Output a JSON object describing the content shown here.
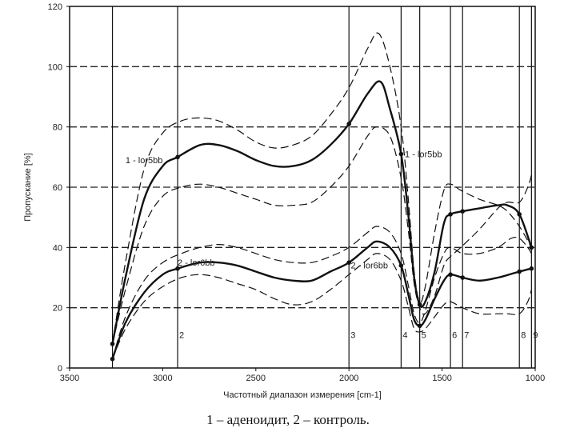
{
  "caption": "1 – аденоидит,    2 – контроль.",
  "chart_data": {
    "type": "line",
    "title": "",
    "xlabel": "Частотный диапазон измерения [cm-1]",
    "ylabel": "Пропускание [%]",
    "xlim": [
      3500,
      1000
    ],
    "ylim": [
      0,
      120
    ],
    "x_ticks": [
      3500,
      3000,
      2500,
      2000,
      1500,
      1000
    ],
    "y_ticks": [
      0,
      20,
      40,
      60,
      80,
      100,
      120
    ],
    "y_tick_labels": [
      "0",
      "20",
      "40",
      "60",
      "80",
      "100",
      "120"
    ],
    "grid": {
      "horizontal_dashed": [
        20,
        40,
        60,
        80,
        100
      ]
    },
    "vertical_markers": [
      {
        "x": 3270,
        "label": ""
      },
      {
        "x": 2920,
        "label": "2"
      },
      {
        "x": 2000,
        "label": "3"
      },
      {
        "x": 1720,
        "label": "4"
      },
      {
        "x": 1620,
        "label": "5"
      },
      {
        "x": 1455,
        "label": "6"
      },
      {
        "x": 1390,
        "label": "7"
      },
      {
        "x": 1085,
        "label": "8"
      },
      {
        "x": 1020,
        "label": "9"
      }
    ],
    "series": [
      {
        "name": "1 - lor5bb",
        "style": "solid",
        "points": [
          [
            3270,
            8
          ],
          [
            3200,
            30
          ],
          [
            3100,
            56
          ],
          [
            3000,
            67
          ],
          [
            2920,
            70
          ],
          [
            2800,
            74
          ],
          [
            2700,
            74
          ],
          [
            2600,
            72
          ],
          [
            2500,
            69
          ],
          [
            2400,
            67
          ],
          [
            2300,
            67
          ],
          [
            2200,
            69
          ],
          [
            2100,
            74
          ],
          [
            2000,
            81
          ],
          [
            1900,
            91
          ],
          [
            1830,
            95
          ],
          [
            1780,
            86
          ],
          [
            1720,
            71
          ],
          [
            1680,
            50
          ],
          [
            1650,
            30
          ],
          [
            1620,
            21
          ],
          [
            1590,
            22
          ],
          [
            1540,
            32
          ],
          [
            1490,
            48
          ],
          [
            1455,
            51
          ],
          [
            1390,
            52
          ],
          [
            1300,
            53
          ],
          [
            1200,
            54
          ],
          [
            1150,
            54
          ],
          [
            1085,
            51
          ],
          [
            1020,
            40
          ]
        ],
        "markers": [
          [
            3270,
            8
          ],
          [
            2920,
            70
          ],
          [
            2000,
            81
          ],
          [
            1720,
            71
          ],
          [
            1620,
            21
          ],
          [
            1455,
            51
          ],
          [
            1390,
            52
          ],
          [
            1085,
            51
          ],
          [
            1020,
            40
          ]
        ]
      },
      {
        "name": "1 - lor5bb upper",
        "style": "dashed",
        "points": [
          [
            3270,
            8
          ],
          [
            3200,
            35
          ],
          [
            3100,
            66
          ],
          [
            3000,
            78
          ],
          [
            2900,
            82
          ],
          [
            2800,
            83
          ],
          [
            2700,
            82
          ],
          [
            2600,
            79
          ],
          [
            2500,
            75
          ],
          [
            2400,
            73
          ],
          [
            2300,
            74
          ],
          [
            2200,
            77
          ],
          [
            2100,
            84
          ],
          [
            2000,
            93
          ],
          [
            1900,
            106
          ],
          [
            1840,
            111
          ],
          [
            1780,
            100
          ],
          [
            1720,
            80
          ],
          [
            1680,
            55
          ],
          [
            1650,
            32
          ],
          [
            1620,
            22
          ],
          [
            1590,
            27
          ],
          [
            1540,
            45
          ],
          [
            1490,
            59
          ],
          [
            1455,
            61
          ],
          [
            1400,
            59
          ],
          [
            1300,
            56
          ],
          [
            1200,
            54
          ],
          [
            1150,
            52
          ],
          [
            1085,
            47
          ],
          [
            1020,
            40
          ]
        ]
      },
      {
        "name": "1 - lor5bb lower",
        "style": "dashed",
        "points": [
          [
            3270,
            8
          ],
          [
            3200,
            26
          ],
          [
            3100,
            47
          ],
          [
            3000,
            57
          ],
          [
            2900,
            60
          ],
          [
            2800,
            61
          ],
          [
            2700,
            60
          ],
          [
            2600,
            58
          ],
          [
            2500,
            56
          ],
          [
            2400,
            54
          ],
          [
            2300,
            54
          ],
          [
            2200,
            55
          ],
          [
            2100,
            60
          ],
          [
            2000,
            67
          ],
          [
            1900,
            77
          ],
          [
            1850,
            80
          ],
          [
            1780,
            77
          ],
          [
            1720,
            63
          ],
          [
            1680,
            45
          ],
          [
            1650,
            28
          ],
          [
            1620,
            20
          ],
          [
            1590,
            18
          ],
          [
            1540,
            24
          ],
          [
            1490,
            34
          ],
          [
            1455,
            37
          ],
          [
            1400,
            40
          ],
          [
            1300,
            46
          ],
          [
            1200,
            53
          ],
          [
            1150,
            55
          ],
          [
            1085,
            55
          ],
          [
            1040,
            60
          ],
          [
            1020,
            64
          ]
        ]
      },
      {
        "name": "2 - lor6bb",
        "style": "solid",
        "points": [
          [
            3270,
            3
          ],
          [
            3200,
            15
          ],
          [
            3100,
            25
          ],
          [
            3000,
            31
          ],
          [
            2920,
            33
          ],
          [
            2800,
            35
          ],
          [
            2700,
            35
          ],
          [
            2600,
            34
          ],
          [
            2500,
            32
          ],
          [
            2400,
            30
          ],
          [
            2300,
            29
          ],
          [
            2200,
            29
          ],
          [
            2100,
            32
          ],
          [
            2000,
            35
          ],
          [
            1900,
            40
          ],
          [
            1850,
            42
          ],
          [
            1780,
            40
          ],
          [
            1720,
            34
          ],
          [
            1680,
            24
          ],
          [
            1650,
            16
          ],
          [
            1620,
            14
          ],
          [
            1590,
            16
          ],
          [
            1540,
            23
          ],
          [
            1490,
            29
          ],
          [
            1455,
            31
          ],
          [
            1390,
            30
          ],
          [
            1300,
            29
          ],
          [
            1200,
            30
          ],
          [
            1085,
            32
          ],
          [
            1020,
            33
          ]
        ],
        "markers": [
          [
            3270,
            3
          ],
          [
            2920,
            33
          ],
          [
            2000,
            35
          ],
          [
            1720,
            34
          ],
          [
            1620,
            14
          ],
          [
            1455,
            31
          ],
          [
            1390,
            30
          ],
          [
            1085,
            32
          ],
          [
            1020,
            33
          ]
        ]
      },
      {
        "name": "2 - lor6bb upper",
        "style": "dashed",
        "points": [
          [
            3270,
            3
          ],
          [
            3200,
            17
          ],
          [
            3100,
            29
          ],
          [
            3000,
            35
          ],
          [
            2900,
            38
          ],
          [
            2800,
            40
          ],
          [
            2700,
            41
          ],
          [
            2600,
            40
          ],
          [
            2500,
            38
          ],
          [
            2400,
            36
          ],
          [
            2300,
            35
          ],
          [
            2200,
            35
          ],
          [
            2100,
            37
          ],
          [
            2000,
            40
          ],
          [
            1900,
            45
          ],
          [
            1850,
            47
          ],
          [
            1780,
            45
          ],
          [
            1720,
            38
          ],
          [
            1680,
            27
          ],
          [
            1650,
            18
          ],
          [
            1620,
            15
          ],
          [
            1590,
            19
          ],
          [
            1540,
            30
          ],
          [
            1490,
            38
          ],
          [
            1455,
            40
          ],
          [
            1390,
            38
          ],
          [
            1300,
            38
          ],
          [
            1200,
            40
          ],
          [
            1130,
            43
          ],
          [
            1085,
            43
          ],
          [
            1040,
            40
          ],
          [
            1020,
            38
          ]
        ]
      },
      {
        "name": "2 - lor6bb lower",
        "style": "dashed",
        "points": [
          [
            3270,
            3
          ],
          [
            3200,
            13
          ],
          [
            3100,
            22
          ],
          [
            3000,
            27
          ],
          [
            2900,
            30
          ],
          [
            2800,
            31
          ],
          [
            2700,
            30
          ],
          [
            2600,
            28
          ],
          [
            2500,
            26
          ],
          [
            2400,
            23
          ],
          [
            2300,
            21
          ],
          [
            2200,
            22
          ],
          [
            2100,
            26
          ],
          [
            2000,
            31
          ],
          [
            1900,
            36
          ],
          [
            1850,
            38
          ],
          [
            1780,
            36
          ],
          [
            1720,
            29
          ],
          [
            1680,
            20
          ],
          [
            1650,
            13
          ],
          [
            1620,
            12
          ],
          [
            1590,
            13
          ],
          [
            1540,
            17
          ],
          [
            1490,
            21
          ],
          [
            1455,
            22
          ],
          [
            1390,
            20
          ],
          [
            1300,
            18
          ],
          [
            1200,
            18
          ],
          [
            1150,
            18
          ],
          [
            1085,
            18
          ],
          [
            1040,
            22
          ],
          [
            1020,
            26
          ]
        ]
      }
    ],
    "annotations": [
      {
        "text": "1 - lor5bb",
        "x": 3000,
        "y": 68
      },
      {
        "text": "1 - lor5bb",
        "x": 1700,
        "y": 70
      },
      {
        "text": "2 - lor6bb",
        "x": 2920,
        "y": 34
      },
      {
        "text": "2 - lor6bb",
        "x": 1990,
        "y": 33
      }
    ]
  }
}
